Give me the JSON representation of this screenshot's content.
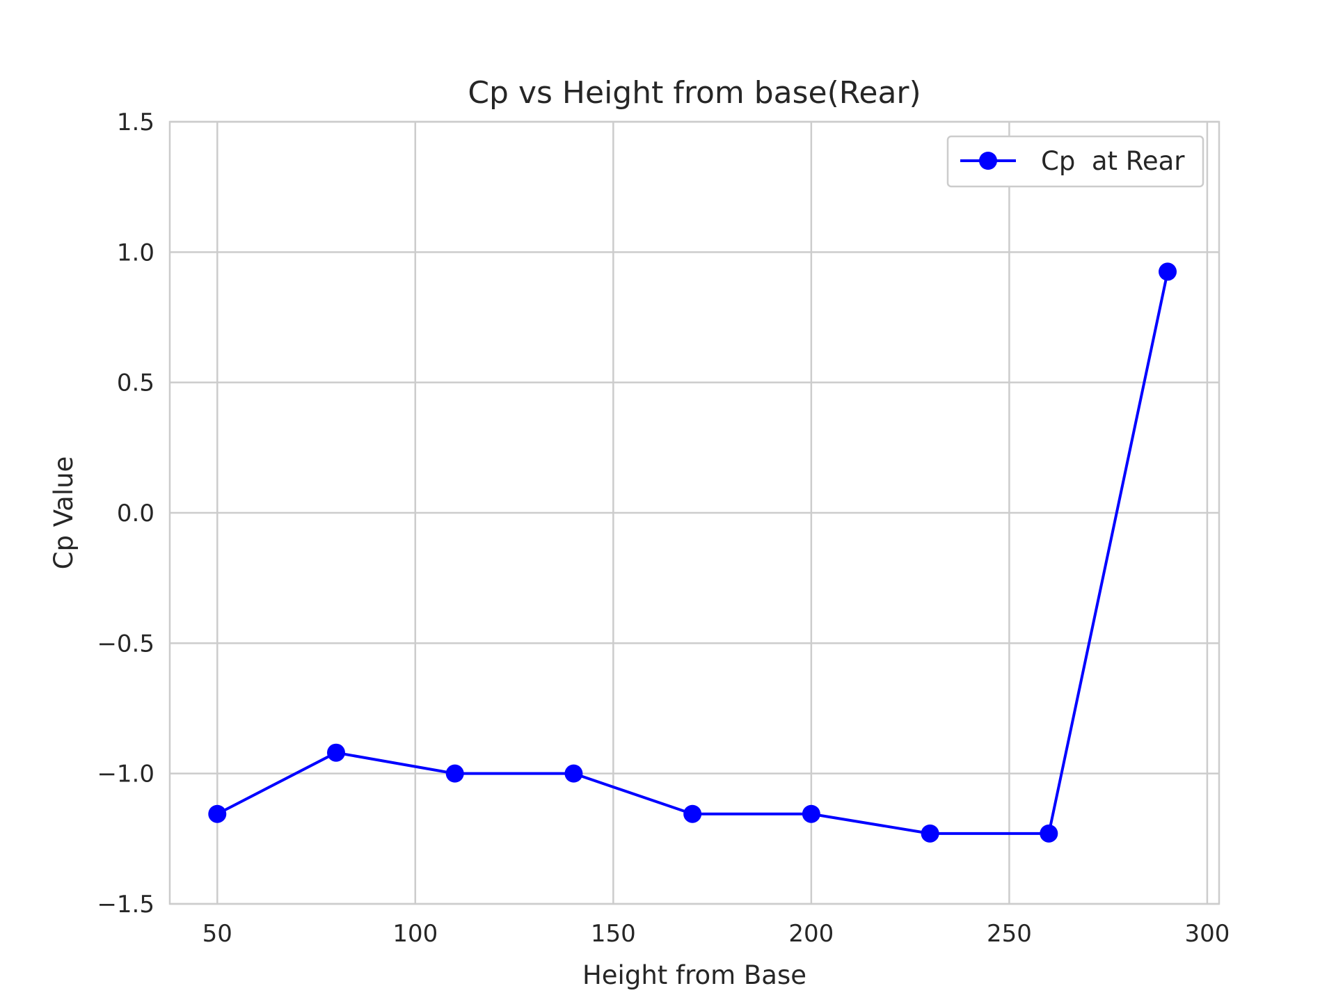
{
  "chart_data": {
    "type": "line",
    "title": "Cp vs Height from base(Rear)",
    "xlabel": "Height from Base",
    "ylabel": "Cp Value",
    "xlim": [
      38,
      303
    ],
    "ylim": [
      -1.5,
      1.5
    ],
    "xticks": [
      50,
      100,
      150,
      200,
      250,
      300
    ],
    "yticks": [
      -1.5,
      -1.0,
      -0.5,
      0.0,
      0.5,
      1.0,
      1.5
    ],
    "xtick_labels": [
      "50",
      "100",
      "150",
      "200",
      "250",
      "300"
    ],
    "ytick_labels": [
      "−1.5",
      "−1.0",
      "−0.5",
      "0.0",
      "0.5",
      "1.0",
      "1.5"
    ],
    "grid": true,
    "legend_position": "top-right",
    "series": [
      {
        "name": "Cp  at Rear",
        "color": "#0000ff",
        "marker": "circle",
        "x": [
          50,
          80,
          110,
          140,
          170,
          200,
          230,
          260,
          290
        ],
        "y": [
          -1.155,
          -0.92,
          -1.0,
          -1.0,
          -1.155,
          -1.155,
          -1.23,
          -1.23,
          0.925
        ]
      }
    ]
  },
  "colors": {
    "grid": "#cccccc",
    "spine": "#cccccc",
    "text": "#262626",
    "background": "#ffffff"
  }
}
